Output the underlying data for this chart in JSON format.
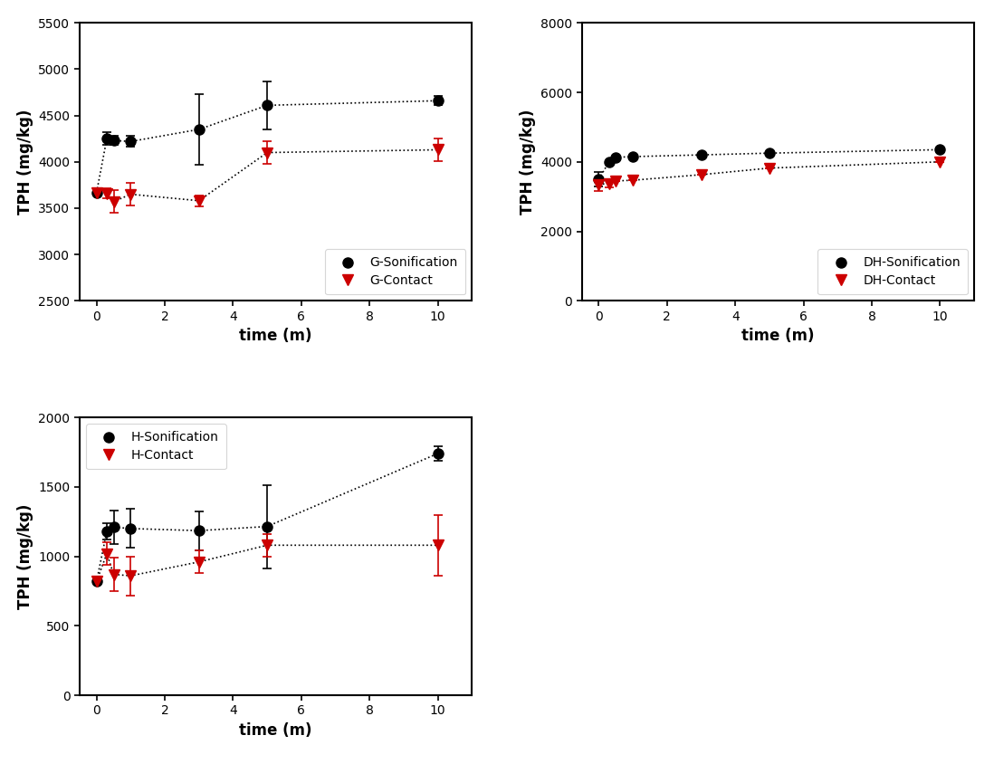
{
  "G": {
    "x": [
      0,
      0.3,
      0.5,
      1,
      3,
      5,
      10
    ],
    "sonification_y": [
      3670,
      4250,
      4230,
      4220,
      4350,
      4610,
      4660
    ],
    "sonification_yerr": [
      0,
      70,
      50,
      60,
      380,
      260,
      50
    ],
    "contact_y": [
      3670,
      3660,
      3570,
      3650,
      3580,
      4100,
      4130
    ],
    "contact_yerr": [
      0,
      50,
      120,
      120,
      60,
      120,
      120
    ],
    "ylim": [
      2500,
      5500
    ],
    "yticks": [
      2500,
      3000,
      3500,
      4000,
      4500,
      5000,
      5500
    ],
    "ylabel": "TPH (mg/kg)",
    "xlabel": "time (m)",
    "legend1": "G-Sonification",
    "legend2": "G-Contact",
    "legend_loc": "lower right"
  },
  "DH": {
    "x": [
      0,
      0.3,
      0.5,
      1,
      3,
      5,
      10
    ],
    "sonification_y": [
      3500,
      4000,
      4130,
      4150,
      4200,
      4250,
      4350
    ],
    "sonification_yerr": [
      200,
      0,
      0,
      0,
      0,
      0,
      0
    ],
    "contact_y": [
      3350,
      3380,
      3450,
      3470,
      3630,
      3820,
      4000
    ],
    "contact_yerr": [
      200,
      120,
      0,
      0,
      0,
      0,
      0
    ],
    "ylim": [
      0,
      8000
    ],
    "yticks": [
      0,
      2000,
      4000,
      6000,
      8000
    ],
    "ylabel": "TPH (mg/kg)",
    "xlabel": "time (m)",
    "legend1": "DH-Sonification",
    "legend2": "DH-Contact",
    "legend_loc": "lower right"
  },
  "H": {
    "x": [
      0,
      0.3,
      0.5,
      1,
      3,
      5,
      10
    ],
    "sonification_y": [
      820,
      1180,
      1210,
      1200,
      1185,
      1215,
      1740
    ],
    "sonification_yerr": [
      0,
      60,
      120,
      140,
      140,
      300,
      50
    ],
    "contact_y": [
      820,
      1020,
      870,
      860,
      960,
      1080,
      1080
    ],
    "contact_yerr": [
      0,
      80,
      120,
      140,
      80,
      80,
      220
    ],
    "ylim": [
      0,
      2000
    ],
    "yticks": [
      0,
      500,
      1000,
      1500,
      2000
    ],
    "ylabel": "TPH (mg/kg)",
    "xlabel": "time (m)",
    "legend1": "H-Sonification",
    "legend2": "H-Contact",
    "legend_loc": "upper left"
  },
  "line_color": "#000000",
  "sonification_marker_color": "#000000",
  "contact_marker_color": "#cc0000",
  "linestyle": "dotted",
  "markersize": 8,
  "marker_sonification": "o",
  "marker_contact": "v",
  "linewidth": 1.2,
  "background_color": "#ffffff",
  "xticks": [
    0,
    2,
    4,
    6,
    8,
    10
  ],
  "xlim": [
    -0.5,
    11.0
  ]
}
